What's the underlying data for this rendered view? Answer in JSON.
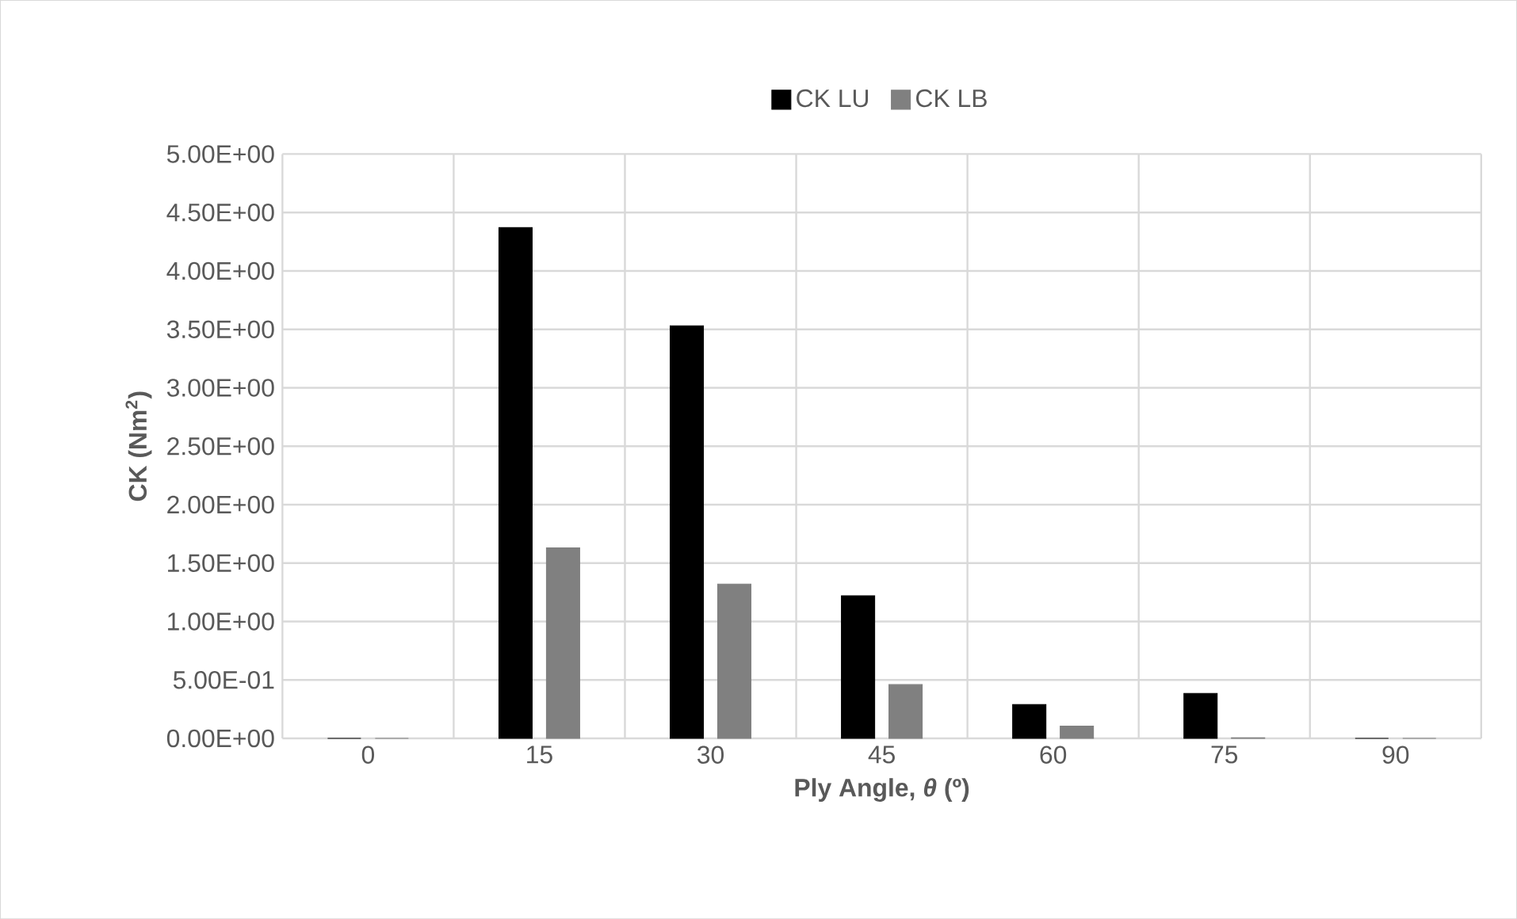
{
  "chart_data": {
    "type": "bar",
    "xlabel": "Ply Angle, *θ* (º)",
    "ylabel": "CK (Nm$^{2}$)",
    "categories": [
      "0",
      "15",
      "30",
      "45",
      "60",
      "75",
      "90"
    ],
    "series": [
      {
        "name": "CK LU",
        "color": "#000000",
        "values": [
          0,
          4.37,
          3.53,
          1.22,
          0.29,
          0.385,
          0
        ]
      },
      {
        "name": "CK LB",
        "color": "#808080",
        "values": [
          0,
          1.63,
          1.32,
          0.46,
          0.105,
          0.005,
          0
        ]
      }
    ],
    "ylim": [
      0,
      5
    ],
    "yticks": [
      {
        "value": 0,
        "label": "0.00E+00"
      },
      {
        "value": 0.5,
        "label": "5.00E-01"
      },
      {
        "value": 1,
        "label": "1.00E+00"
      },
      {
        "value": 1.5,
        "label": "1.50E+00"
      },
      {
        "value": 2,
        "label": "2.00E+00"
      },
      {
        "value": 2.5,
        "label": "2.50E+00"
      },
      {
        "value": 3,
        "label": "3.00E+00"
      },
      {
        "value": 3.5,
        "label": "3.50E+00"
      },
      {
        "value": 4,
        "label": "4.00E+00"
      },
      {
        "value": 4.5,
        "label": "4.50E+00"
      },
      {
        "value": 5,
        "label": "5.00E+00"
      }
    ],
    "grid": true,
    "legend": "top"
  }
}
